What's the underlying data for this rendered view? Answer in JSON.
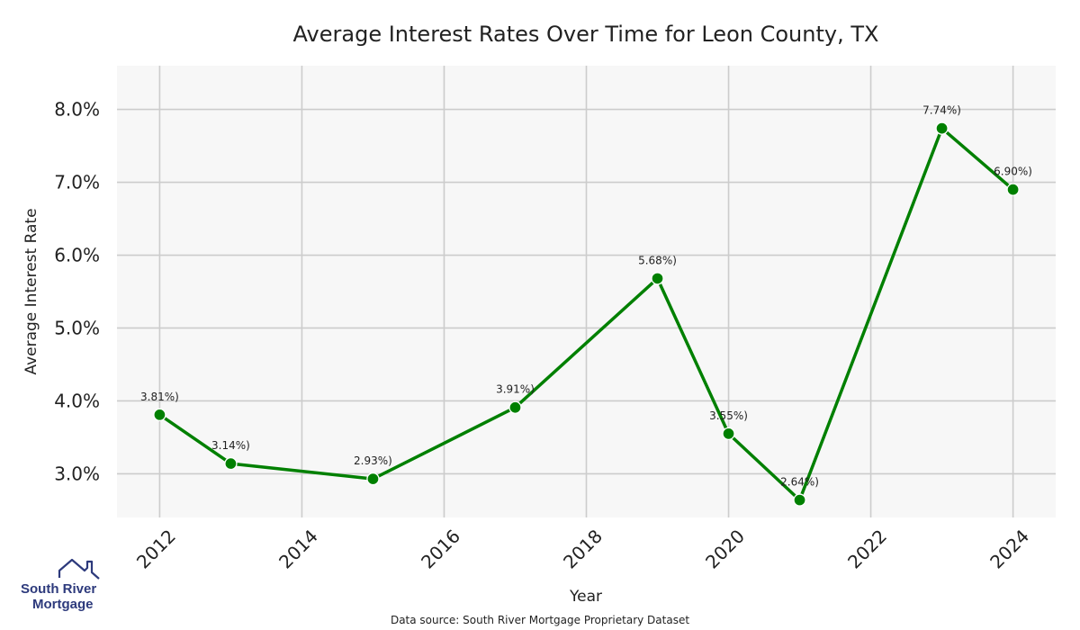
{
  "chart_data": {
    "type": "line",
    "title": "Average Interest Rates Over Time for Leon County, TX",
    "xlabel": "Year",
    "ylabel": "Average Interest Rate",
    "x_ticks": [
      "2012",
      "2014",
      "2016",
      "2018",
      "2020",
      "2022",
      "2024"
    ],
    "y_ticks": [
      "3.0%",
      "4.0%",
      "5.0%",
      "6.0%",
      "7.0%",
      "8.0%"
    ],
    "xlim": [
      2011.4,
      2024.6
    ],
    "ylim": [
      2.4,
      8.6
    ],
    "grid": true,
    "series": [
      {
        "name": "Average Interest Rate",
        "color": "#008000",
        "x": [
          2012,
          2013,
          2015,
          2017,
          2019,
          2020,
          2021,
          2023,
          2024
        ],
        "values": [
          3.81,
          3.14,
          2.93,
          3.91,
          5.68,
          3.55,
          2.64,
          7.74,
          6.9
        ],
        "labels": [
          "3.81%)",
          "3.14%)",
          "2.93%)",
          "3.91%)",
          "5.68%)",
          "3.55%)",
          "2.64%)",
          "7.74%)",
          "6.90%)"
        ]
      }
    ]
  },
  "source": "Data source: South River Mortgage Proprietary Dataset",
  "logo": {
    "line1": "South River",
    "line2": "Mortgage",
    "color": "#2d3a7c"
  },
  "colors": {
    "plot_background": "#f7f7f7",
    "grid": "#cccccc"
  }
}
